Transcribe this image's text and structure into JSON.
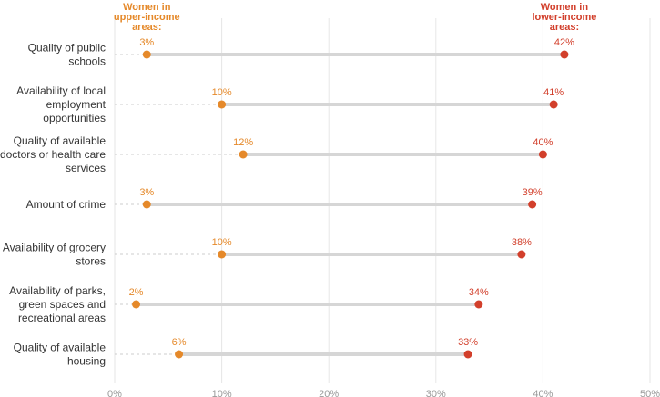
{
  "chart_data": {
    "type": "dumbbell",
    "xlim": [
      0,
      50
    ],
    "x_ticks": [
      "0%",
      "10%",
      "20%",
      "30%",
      "40%",
      "50%"
    ],
    "x_tick_values": [
      0,
      10,
      20,
      30,
      40,
      50
    ],
    "grid": true,
    "categories": [
      [
        "Quality of public",
        "schools"
      ],
      [
        "Availability of local",
        "employment",
        "opportunities"
      ],
      [
        "Quality of available",
        "doctors or health care",
        "services"
      ],
      [
        "Amount of crime"
      ],
      [
        "Availability of grocery",
        "stores"
      ],
      [
        "Availability of parks,",
        "green spaces and",
        "recreational areas"
      ],
      [
        "Quality of available",
        "housing"
      ]
    ],
    "series": [
      {
        "name": [
          "Women in",
          "upper-income",
          "areas:"
        ],
        "color": "#e5892a",
        "values": [
          3,
          10,
          12,
          3,
          10,
          2,
          6
        ],
        "labels": [
          "3%",
          "10%",
          "12%",
          "3%",
          "10%",
          "2%",
          "6%"
        ]
      },
      {
        "name": [
          "Women in",
          "lower-income",
          "areas:"
        ],
        "color": "#d23f2b",
        "values": [
          42,
          41,
          40,
          39,
          38,
          34,
          33
        ],
        "labels": [
          "42%",
          "41%",
          "40%",
          "39%",
          "38%",
          "34%",
          "33%"
        ]
      }
    ]
  }
}
